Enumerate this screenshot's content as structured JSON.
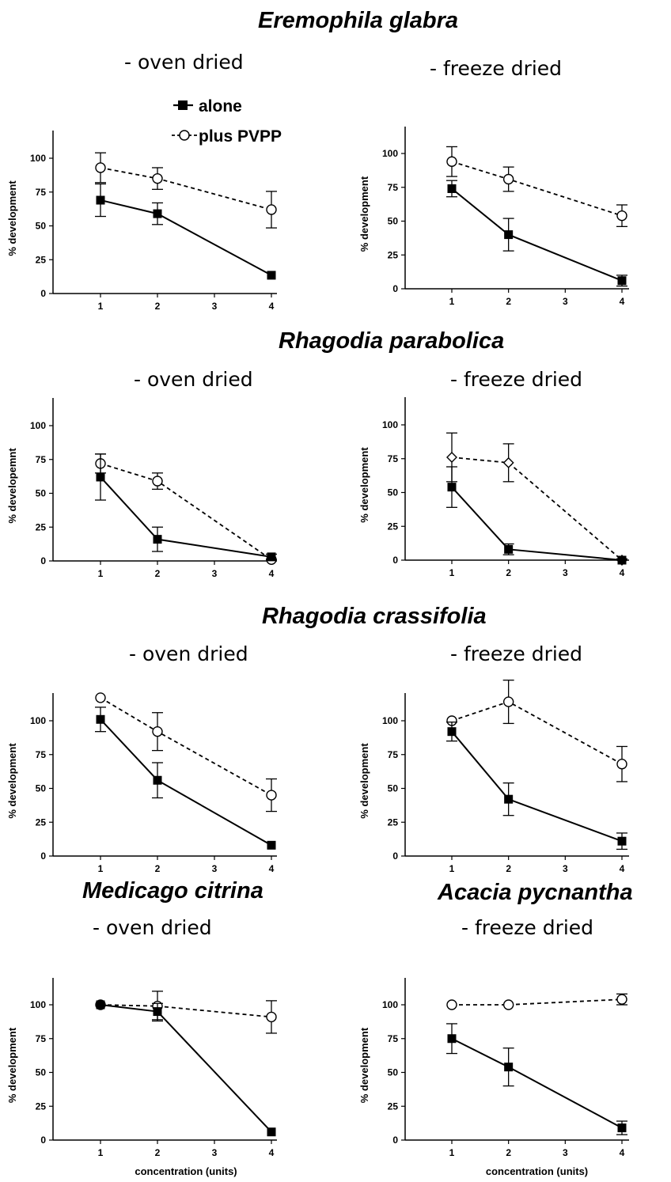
{
  "figure": {
    "species": [
      "Eremophila glabra",
      "Rhagodia parabolica",
      "Rhagodia crassifolia",
      "Medicago citrina",
      "Acacia pycnantha"
    ],
    "subtitles": {
      "oven": "- oven dried",
      "freeze": "- freeze dried"
    },
    "legend": {
      "alone": "alone",
      "plus": "plus PVPP"
    }
  },
  "chart_data": [
    {
      "type": "line",
      "panel": "Eremophila glabra - oven dried",
      "x": [
        1,
        2,
        4
      ],
      "xticks": [
        1,
        2,
        3,
        4
      ],
      "xlim": [
        0.4,
        4.35
      ],
      "ylabel": "% development",
      "xlabel": "",
      "ylim": [
        0,
        120
      ],
      "yticks": [
        0,
        25,
        50,
        75,
        100
      ],
      "series": [
        {
          "name": "alone",
          "values": [
            69,
            59,
            13.5
          ],
          "errors": [
            12,
            8,
            0
          ],
          "marker": "filled-square",
          "style": "solid"
        },
        {
          "name": "plus PVPP",
          "values": [
            93,
            85,
            62
          ],
          "errors": [
            11,
            8,
            13.5
          ],
          "marker": "open-circle",
          "style": "dashed"
        }
      ]
    },
    {
      "type": "line",
      "panel": "Eremophila glabra - freeze dried",
      "x": [
        1,
        2,
        4
      ],
      "xticks": [
        1,
        2,
        3,
        4
      ],
      "xlim": [
        0.4,
        4.35
      ],
      "ylabel": "% development",
      "xlabel": "",
      "ylim": [
        0,
        120
      ],
      "yticks": [
        0,
        25,
        50,
        75,
        100
      ],
      "series": [
        {
          "name": "alone",
          "values": [
            74,
            40,
            6
          ],
          "errors": [
            6,
            12,
            4
          ],
          "marker": "filled-square",
          "style": "solid"
        },
        {
          "name": "plus PVPP",
          "values": [
            94,
            81,
            54
          ],
          "errors": [
            11,
            9,
            8
          ],
          "marker": "open-circle",
          "style": "dashed"
        }
      ]
    },
    {
      "type": "line",
      "panel": "Rhagodia parabolica - oven dried",
      "x": [
        1,
        2,
        4
      ],
      "xticks": [
        1,
        2,
        3,
        4
      ],
      "xlim": [
        0.4,
        4.35
      ],
      "ylabel": "% developemnt",
      "xlabel": "",
      "ylim": [
        0,
        120
      ],
      "yticks": [
        0,
        25,
        50,
        75,
        100
      ],
      "series": [
        {
          "name": "alone",
          "values": [
            62,
            16,
            3
          ],
          "errors": [
            17,
            9,
            2
          ],
          "marker": "filled-square",
          "style": "solid"
        },
        {
          "name": "plus PVPP",
          "values": [
            72,
            59,
            1
          ],
          "errors": [
            7,
            6,
            0
          ],
          "marker": "open-circle",
          "style": "dashed"
        }
      ]
    },
    {
      "type": "line",
      "panel": "Rhagodia parabolica - freeze dried",
      "x": [
        1,
        2,
        4
      ],
      "xticks": [
        1,
        2,
        3,
        4
      ],
      "xlim": [
        0.4,
        4.35
      ],
      "ylabel": "% development",
      "xlabel": "",
      "ylim": [
        0,
        120
      ],
      "yticks": [
        0,
        25,
        50,
        75,
        100
      ],
      "series": [
        {
          "name": "alone",
          "values": [
            54,
            8,
            0
          ],
          "errors": [
            15,
            4,
            1
          ],
          "marker": "filled-square",
          "style": "solid"
        },
        {
          "name": "plus PVPP",
          "values": [
            76,
            72,
            0
          ],
          "errors": [
            18,
            14,
            0
          ],
          "marker": "open-diamond",
          "style": "dashed"
        }
      ]
    },
    {
      "type": "line",
      "panel": "Rhagodia crassifolia - oven dried",
      "x": [
        1,
        2,
        4
      ],
      "xticks": [
        1,
        2,
        3,
        4
      ],
      "xlim": [
        0.4,
        4.35
      ],
      "ylabel": "% development",
      "xlabel": "",
      "ylim": [
        0,
        120
      ],
      "yticks": [
        0,
        25,
        50,
        75,
        100
      ],
      "series": [
        {
          "name": "alone",
          "values": [
            101,
            56,
            8
          ],
          "errors": [
            9,
            13,
            0
          ],
          "marker": "filled-square",
          "style": "solid"
        },
        {
          "name": "plus PVPP",
          "values": [
            117,
            92,
            45
          ],
          "errors": [
            0,
            14,
            12
          ],
          "marker": "open-circle",
          "style": "dashed"
        }
      ]
    },
    {
      "type": "line",
      "panel": "Rhagodia crassifolia - freeze dried",
      "x": [
        1,
        2,
        4
      ],
      "xticks": [
        1,
        2,
        3,
        4
      ],
      "xlim": [
        0.4,
        4.35
      ],
      "ylabel": "% development",
      "xlabel": "",
      "ylim": [
        0,
        120
      ],
      "yticks": [
        0,
        25,
        50,
        75,
        100
      ],
      "series": [
        {
          "name": "alone",
          "values": [
            92,
            42,
            11
          ],
          "errors": [
            7,
            12,
            6
          ],
          "marker": "filled-square",
          "style": "solid"
        },
        {
          "name": "plus PVPP",
          "values": [
            100,
            114,
            68
          ],
          "errors": [
            0,
            16,
            13
          ],
          "marker": "open-circle",
          "style": "dashed"
        }
      ]
    },
    {
      "type": "line",
      "panel": "Medicago citrina - oven dried",
      "x": [
        1,
        2,
        4
      ],
      "xticks": [
        1,
        2,
        3,
        4
      ],
      "xlim": [
        0.4,
        4.35
      ],
      "ylabel": "% development",
      "xlabel": "concentration  (units)",
      "ylim": [
        0,
        120
      ],
      "yticks": [
        0,
        25,
        50,
        75,
        100
      ],
      "series": [
        {
          "name": "alone",
          "values": [
            100,
            95,
            6
          ],
          "errors": [
            0,
            6,
            0
          ],
          "marker": "filled-square",
          "style": "solid"
        },
        {
          "name": "plus PVPP",
          "values": [
            100,
            99,
            91
          ],
          "errors": [
            0,
            11,
            12
          ],
          "marker": "open-circle",
          "style": "dashed"
        }
      ]
    },
    {
      "type": "line",
      "panel": "Acacia pycnantha - freeze dried",
      "x": [
        1,
        2,
        4
      ],
      "xticks": [
        1,
        2,
        3,
        4
      ],
      "xlim": [
        0.4,
        4.35
      ],
      "ylabel": "% development",
      "xlabel": "concentration  (units)",
      "ylim": [
        0,
        120
      ],
      "yticks": [
        0,
        25,
        50,
        75,
        100
      ],
      "series": [
        {
          "name": "alone",
          "values": [
            75,
            54,
            9
          ],
          "errors": [
            11,
            14,
            5
          ],
          "marker": "filled-square",
          "style": "solid"
        },
        {
          "name": "plus PVPP",
          "values": [
            100,
            100,
            104
          ],
          "errors": [
            0,
            0,
            4
          ],
          "marker": "open-circle",
          "style": "dashed"
        }
      ]
    }
  ]
}
